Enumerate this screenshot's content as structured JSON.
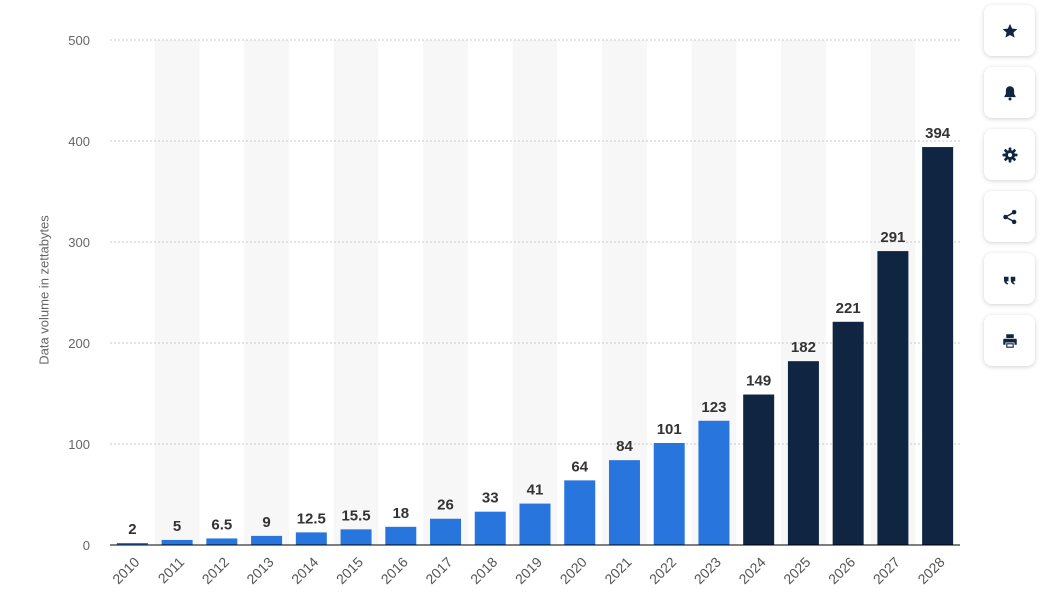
{
  "chart_data": {
    "type": "bar",
    "title": "",
    "xlabel": "",
    "ylabel": "Data volume in zettabytes",
    "ylim": [
      0,
      500
    ],
    "yticks": [
      0,
      100,
      200,
      300,
      400,
      500
    ],
    "grid": true,
    "categories": [
      "2010",
      "2011",
      "2012",
      "2013",
      "2014",
      "2015",
      "2016",
      "2017",
      "2018",
      "2019",
      "2020",
      "2021",
      "2022",
      "2023",
      "2024",
      "2025",
      "2026",
      "2027",
      "2028"
    ],
    "values": [
      2,
      5,
      6.5,
      9,
      12.5,
      15.5,
      18,
      26,
      33,
      41,
      64,
      84,
      101,
      123,
      149,
      182,
      221,
      291,
      394
    ],
    "value_labels": [
      "2",
      "5",
      "6.5",
      "9",
      "12.5",
      "15.5",
      "18",
      "26",
      "33",
      "41",
      "64",
      "84",
      "101",
      "123",
      "149",
      "182",
      "221",
      "291",
      "394"
    ],
    "colors": {
      "actual": "#2876dd",
      "forecast": "#0f2541",
      "alt_band": "#f7f7f7",
      "grid": "#c8c8c8",
      "axis": "#000000"
    },
    "forecast_start_index": 14
  },
  "toolbar": {
    "buttons": [
      {
        "name": "favorite-button",
        "icon": "star-icon"
      },
      {
        "name": "notification-button",
        "icon": "bell-icon"
      },
      {
        "name": "settings-button",
        "icon": "gear-icon"
      },
      {
        "name": "share-button",
        "icon": "share-icon"
      },
      {
        "name": "citation-button",
        "icon": "quote-icon"
      },
      {
        "name": "print-button",
        "icon": "printer-icon"
      }
    ]
  }
}
